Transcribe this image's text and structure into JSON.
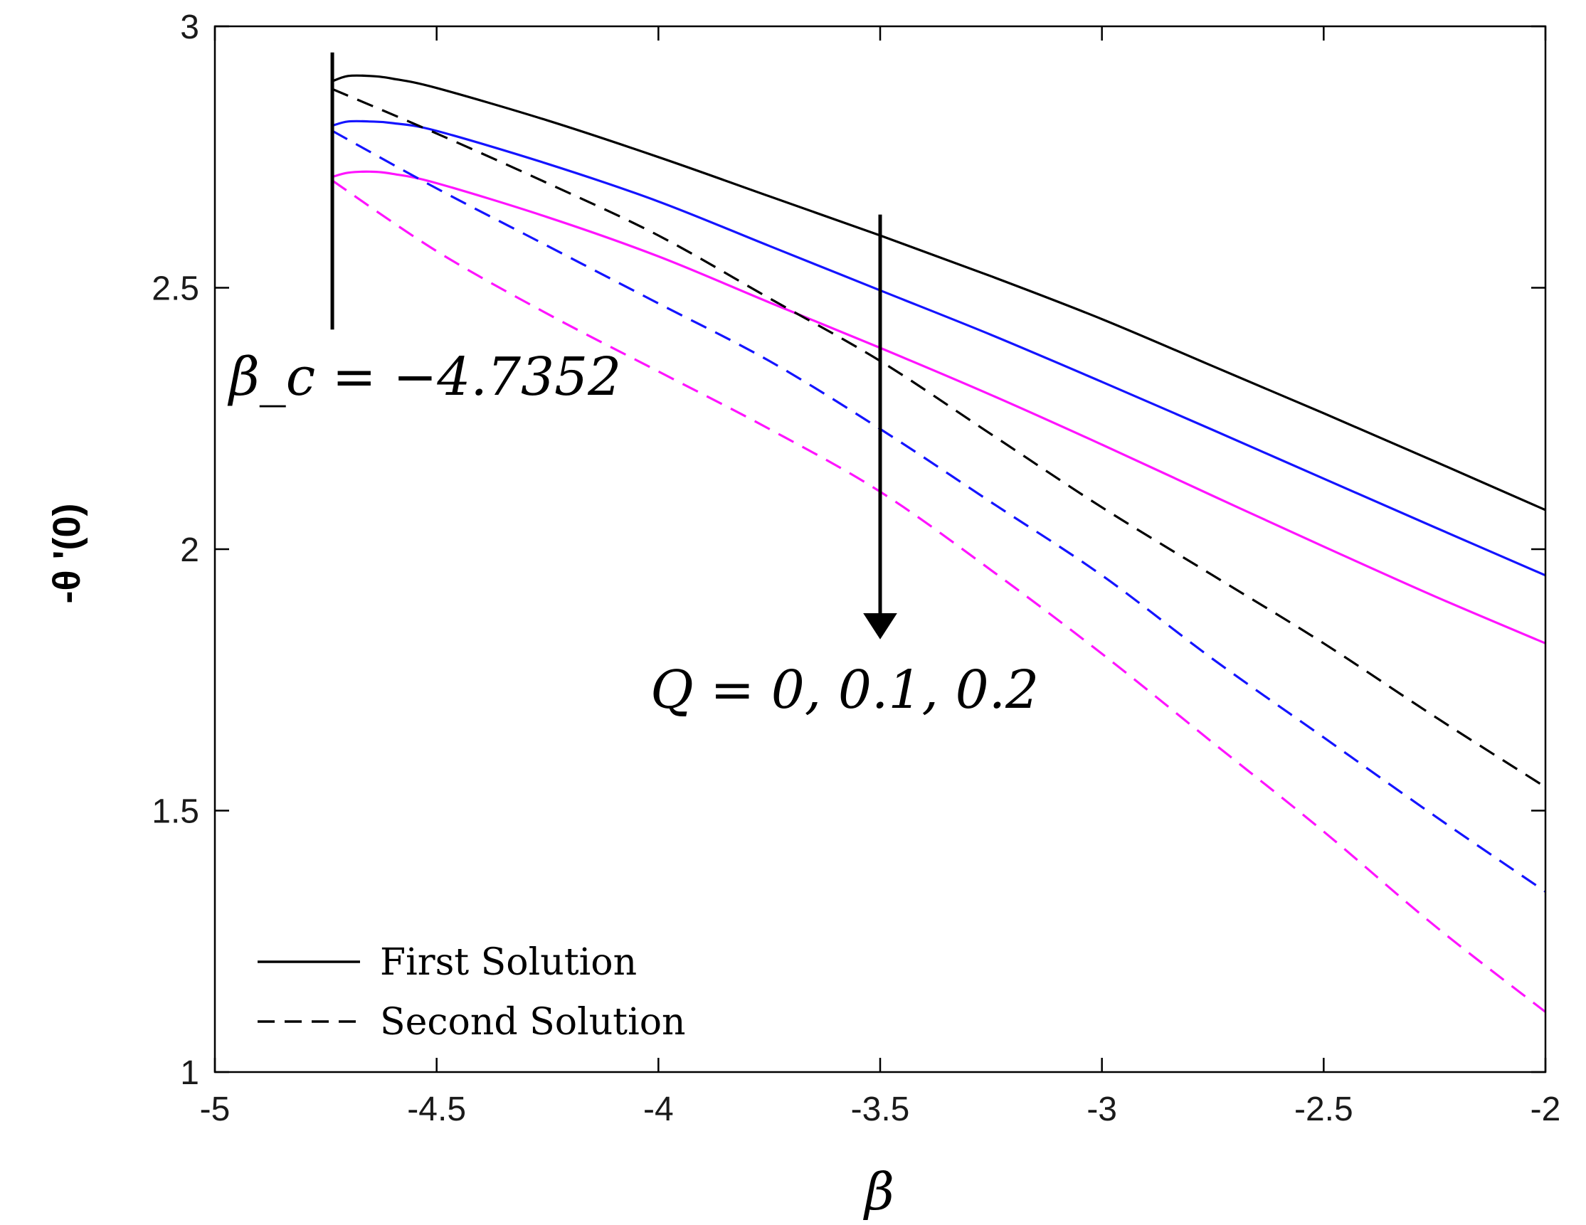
{
  "chart_data": {
    "type": "line",
    "title": "",
    "xlabel": "β",
    "ylabel": "-θ '(0)",
    "xlim": [
      -5,
      -2
    ],
    "ylim": [
      1,
      3
    ],
    "x_ticks": [
      "-5",
      "-4.5",
      "-4",
      "-3.5",
      "-3",
      "-2.5",
      "-2"
    ],
    "y_ticks": [
      "1",
      "1.5",
      "2",
      "2.5",
      "3"
    ],
    "colors": {
      "axis": "#000000",
      "q0": "#000000",
      "q01": "#1414ff",
      "q02": "#ff14ff"
    },
    "series": [
      {
        "name": "First Solution, Q = 0",
        "style": "solid",
        "color": "#000000",
        "x": [
          -4.7352,
          -4.7,
          -4.65,
          -4.6,
          -4.5,
          -4.25,
          -4.0,
          -3.75,
          -3.5,
          -3.25,
          -3.0,
          -2.75,
          -2.5,
          -2.25,
          -2.0
        ],
        "y": [
          2.895,
          2.905,
          2.905,
          2.9,
          2.882,
          2.82,
          2.75,
          2.675,
          2.6,
          2.522,
          2.44,
          2.35,
          2.26,
          2.168,
          2.075
        ]
      },
      {
        "name": "First Solution, Q = 0.1",
        "style": "solid",
        "color": "#1414ff",
        "x": [
          -4.7352,
          -4.7,
          -4.65,
          -4.6,
          -4.5,
          -4.25,
          -4.0,
          -3.75,
          -3.5,
          -3.25,
          -3.0,
          -2.75,
          -2.5,
          -2.25,
          -2.0
        ],
        "y": [
          2.81,
          2.818,
          2.818,
          2.815,
          2.8,
          2.737,
          2.665,
          2.58,
          2.495,
          2.41,
          2.32,
          2.228,
          2.135,
          2.042,
          1.95
        ]
      },
      {
        "name": "First Solution, Q = 0.2",
        "style": "solid",
        "color": "#ff14ff",
        "x": [
          -4.7352,
          -4.7,
          -4.65,
          -4.6,
          -4.5,
          -4.25,
          -4.0,
          -3.75,
          -3.5,
          -3.25,
          -3.0,
          -2.75,
          -2.5,
          -2.25,
          -2.0
        ],
        "y": [
          2.712,
          2.72,
          2.722,
          2.718,
          2.7,
          2.635,
          2.56,
          2.472,
          2.385,
          2.295,
          2.2,
          2.102,
          2.005,
          1.91,
          1.82
        ]
      },
      {
        "name": "Second Solution, Q = 0",
        "style": "dashed",
        "color": "#000000",
        "x": [
          -4.7352,
          -4.5,
          -4.25,
          -4.0,
          -3.75,
          -3.5,
          -3.25,
          -3.0,
          -2.75,
          -2.5,
          -2.25,
          -2.0
        ],
        "y": [
          2.88,
          2.795,
          2.7,
          2.6,
          2.48,
          2.36,
          2.22,
          2.08,
          1.95,
          1.82,
          1.68,
          1.545
        ]
      },
      {
        "name": "Second Solution, Q = 0.1",
        "style": "dashed",
        "color": "#1414ff",
        "x": [
          -4.7352,
          -4.5,
          -4.25,
          -4.0,
          -3.75,
          -3.5,
          -3.25,
          -3.0,
          -2.75,
          -2.5,
          -2.25,
          -2.0
        ],
        "y": [
          2.8,
          2.69,
          2.58,
          2.47,
          2.36,
          2.23,
          2.09,
          1.95,
          1.79,
          1.64,
          1.49,
          1.345
        ]
      },
      {
        "name": "Second Solution, Q = 0.2",
        "style": "dashed",
        "color": "#ff14ff",
        "x": [
          -4.7352,
          -4.5,
          -4.25,
          -4.0,
          -3.75,
          -3.5,
          -3.25,
          -3.0,
          -2.75,
          -2.5,
          -2.25,
          -2.0
        ],
        "y": [
          2.705,
          2.57,
          2.45,
          2.34,
          2.23,
          2.11,
          1.96,
          1.8,
          1.63,
          1.46,
          1.28,
          1.115
        ]
      }
    ],
    "critical_line": {
      "x": -4.7352,
      "y_from": 2.42,
      "y_to": 2.95,
      "label": "β_c = −4.7352"
    },
    "arrow": {
      "x": -3.5,
      "y_from": 2.64,
      "y_to": 1.83,
      "label": "Q = 0, 0.1, 0.2"
    },
    "legend": {
      "position": "bottom-left",
      "entries": [
        {
          "label": "First Solution",
          "style": "solid"
        },
        {
          "label": "Second Solution",
          "style": "dashed"
        }
      ]
    }
  }
}
